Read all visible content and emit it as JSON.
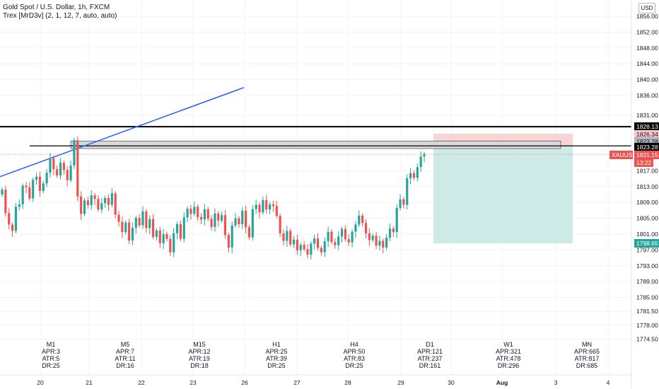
{
  "header": {
    "title": "Gold Spot / U.S. Dollar, 1h, FXCM",
    "indicator": "Trex [MrD3v] (2, 1, 12, 7, auto, auto)"
  },
  "currency_button": "USD",
  "colors": {
    "up": "#26a69a",
    "down": "#ef5350",
    "trend_line": "#2962ff",
    "level_line": "#000000",
    "stop_zone": "#f7c6c6",
    "target_zone": "#cbe9e6",
    "last_price": "#ef5350",
    "target_label": "#26a69a"
  },
  "price_axis": {
    "ticks": [
      "1856.00",
      "1852.00",
      "1848.00",
      "1844.00",
      "1840.00",
      "1836.00",
      "1831.00",
      "1817.00",
      "1813.00",
      "1809.00",
      "1805.00",
      "1801.00",
      "1797.00",
      "1793.00",
      "1789.00",
      "1785.00",
      "1781.50",
      "1778.00",
      "1774.50"
    ]
  },
  "price_labels": {
    "level_high": "1828.13",
    "zone_top": "1826.34",
    "level_mid": "1823.28",
    "level_line": "1823.28",
    "symbol": "XAUUSD",
    "last_price": "1821.15",
    "countdown": "13:22",
    "target": "1798.65"
  },
  "time_axis": {
    "labels": [
      "20",
      "21",
      "22",
      "23",
      "26",
      "27",
      "28",
      "29",
      "30",
      "Aug",
      "3",
      "4"
    ]
  },
  "timeframes": [
    {
      "name": "M1",
      "apr": "APR:3",
      "atr": "ATR:5",
      "dr": "DR:25"
    },
    {
      "name": "M5",
      "apr": "APR:7",
      "atr": "ATR:11",
      "dr": "DR:16"
    },
    {
      "name": "M15",
      "apr": "APR:12",
      "atr": "ATR:19",
      "dr": "DR:18"
    },
    {
      "name": "H1",
      "apr": "APR:25",
      "atr": "ATR:39",
      "dr": "DR:25"
    },
    {
      "name": "H4",
      "apr": "APR:50",
      "atr": "ATR:83",
      "dr": "DR:25"
    },
    {
      "name": "D1",
      "apr": "APR:121",
      "atr": "ATR:237",
      "dr": "DR:161"
    },
    {
      "name": "W1",
      "apr": "APR:321",
      "atr": "ATR:478",
      "dr": "DR:296"
    },
    {
      "name": "MN",
      "apr": "APR:665",
      "atr": "ATR:817",
      "dr": "DR:685"
    }
  ],
  "series": [
    1812.2,
    1806.3,
    1803.4,
    1801.8,
    1807.9,
    1808.5,
    1813.2,
    1812.8,
    1810.0,
    1814.7,
    1815.5,
    1811.9,
    1813.8,
    1816.5,
    1820.2,
    1817.4,
    1815.8,
    1819.0,
    1817.2,
    1814.6,
    1818.3,
    1824.7,
    1810.5,
    1806.1,
    1809.5,
    1808.3,
    1810.8,
    1809.9,
    1807.2,
    1808.8,
    1810.1,
    1808.4,
    1811.3,
    1805.9,
    1804.1,
    1801.5,
    1803.9,
    1799.4,
    1802.6,
    1805.1,
    1803.2,
    1806.7,
    1802.5,
    1804.8,
    1800.3,
    1801.9,
    1798.7,
    1801.0,
    1799.8,
    1796.4,
    1801.2,
    1803.5,
    1799.8,
    1805.2,
    1807.4,
    1806.1,
    1807.9,
    1805.3,
    1804.7,
    1807.3,
    1804.9,
    1802.8,
    1806.2,
    1804.4,
    1805.8,
    1800.8,
    1797.6,
    1803.2,
    1805.0,
    1803.5,
    1806.9,
    1802.7,
    1800.2,
    1807.3,
    1808.4,
    1806.5,
    1809.6,
    1807.2,
    1808.5,
    1808.1,
    1805.6,
    1801.2,
    1799.3,
    1801.8,
    1798.4,
    1799.6,
    1796.9,
    1798.3,
    1797.2,
    1795.8,
    1798.6,
    1799.9,
    1797.5,
    1796.4,
    1799.2,
    1801.6,
    1799.0,
    1798.2,
    1800.4,
    1802.3,
    1799.7,
    1798.9,
    1801.6,
    1803.4,
    1805.7,
    1803.8,
    1801.2,
    1799.5,
    1800.6,
    1798.1,
    1799.3,
    1797.6,
    1800.1,
    1802.4,
    1801.5,
    1807.6,
    1809.8,
    1808.4,
    1815.1,
    1816.4,
    1815.2,
    1817.9,
    1820.6,
    1821.2
  ]
}
